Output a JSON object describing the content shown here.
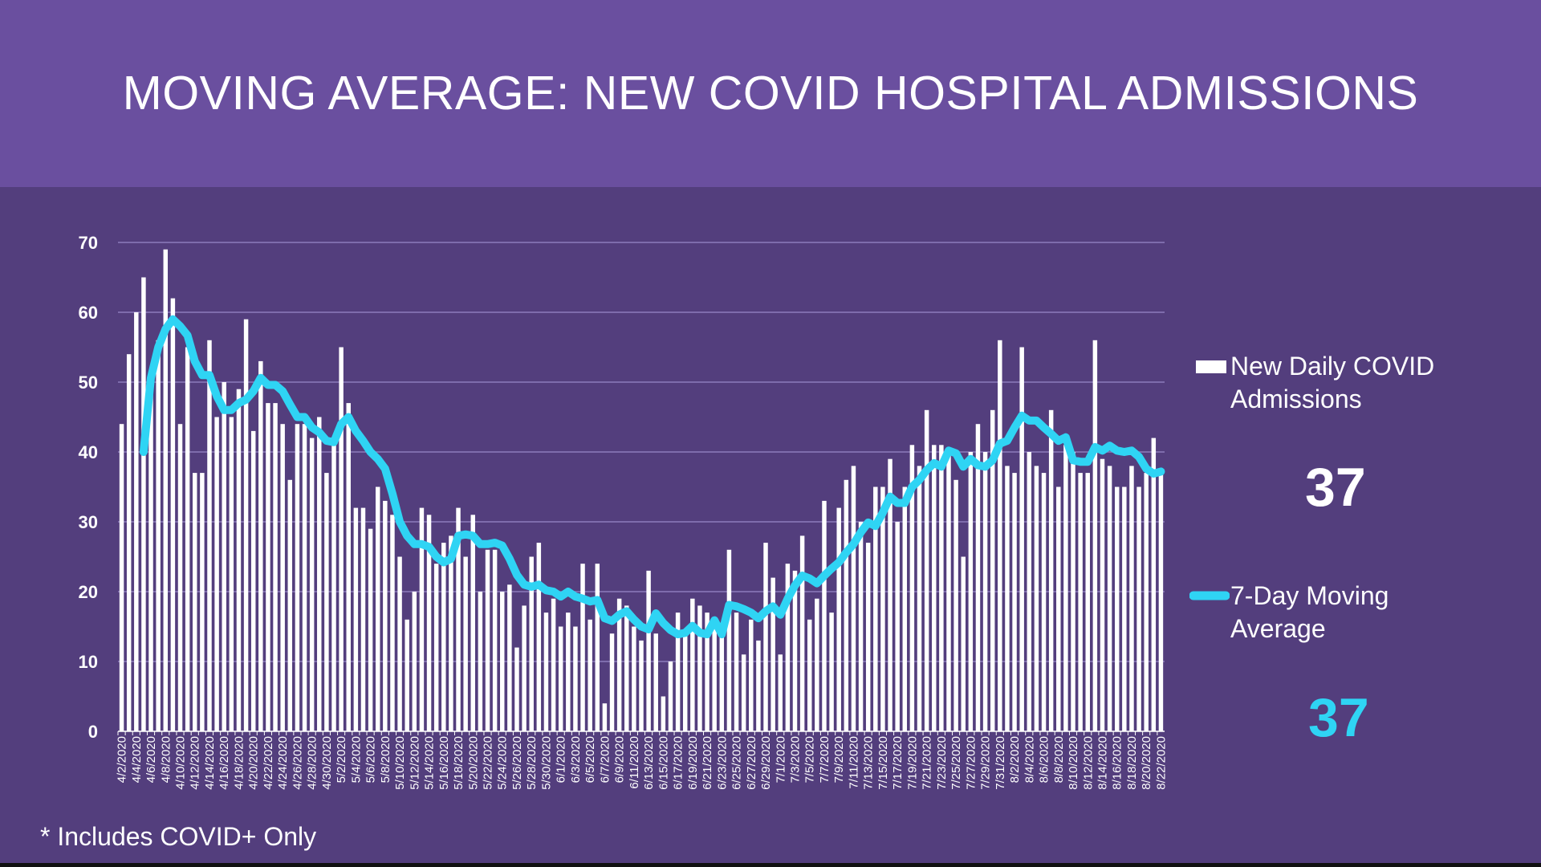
{
  "title": "MOVING AVERAGE: NEW COVID HOSPITAL ADMISSIONS",
  "footnote": "* Includes COVID+ Only",
  "colors": {
    "header": "#6a4f9f",
    "background": "#533e7d",
    "bars": "#ffffff",
    "line": "#2fd4f4",
    "grid": "#8c7bbb"
  },
  "legend": {
    "bars_label_line1": "New Daily COVID",
    "bars_label_line2": "Admissions",
    "bars_latest": "37",
    "line_label_line1": "7-Day Moving",
    "line_label_line2": "Average",
    "line_latest": "37"
  },
  "chart_data": {
    "type": "bar+line",
    "ylim": [
      0,
      70
    ],
    "yticks": [
      "0",
      "10",
      "20",
      "30",
      "40",
      "50",
      "60",
      "70"
    ],
    "grid": true,
    "legend_placement": "right",
    "categories": [
      "4/2/2020",
      "4/3/2020",
      "4/4/2020",
      "4/5/2020",
      "4/6/2020",
      "4/7/2020",
      "4/8/2020",
      "4/9/2020",
      "4/10/2020",
      "4/11/2020",
      "4/12/2020",
      "4/13/2020",
      "4/14/2020",
      "4/15/2020",
      "4/16/2020",
      "4/17/2020",
      "4/18/2020",
      "4/19/2020",
      "4/20/2020",
      "4/21/2020",
      "4/22/2020",
      "4/23/2020",
      "4/24/2020",
      "4/25/2020",
      "4/26/2020",
      "4/27/2020",
      "4/28/2020",
      "4/29/2020",
      "4/30/2020",
      "5/1/2020",
      "5/2/2020",
      "5/3/2020",
      "5/4/2020",
      "5/5/2020",
      "5/6/2020",
      "5/7/2020",
      "5/8/2020",
      "5/9/2020",
      "5/10/2020",
      "5/11/2020",
      "5/12/2020",
      "5/13/2020",
      "5/14/2020",
      "5/15/2020",
      "5/16/2020",
      "5/17/2020",
      "5/18/2020",
      "5/19/2020",
      "5/20/2020",
      "5/21/2020",
      "5/22/2020",
      "5/23/2020",
      "5/24/2020",
      "5/25/2020",
      "5/26/2020",
      "5/27/2020",
      "5/28/2020",
      "5/29/2020",
      "5/30/2020",
      "5/31/2020",
      "6/1/2020",
      "6/2/2020",
      "6/3/2020",
      "6/4/2020",
      "6/5/2020",
      "6/6/2020",
      "6/7/2020",
      "6/8/2020",
      "6/9/2020",
      "6/10/2020",
      "6/11/2020",
      "6/12/2020",
      "6/13/2020",
      "6/14/2020",
      "6/15/2020",
      "6/16/2020",
      "6/17/2020",
      "6/18/2020",
      "6/19/2020",
      "6/20/2020",
      "6/21/2020",
      "6/22/2020",
      "6/23/2020",
      "6/24/2020",
      "6/25/2020",
      "6/26/2020",
      "6/27/2020",
      "6/28/2020",
      "6/29/2020",
      "6/30/2020",
      "7/1/2020",
      "7/2/2020",
      "7/3/2020",
      "7/4/2020",
      "7/5/2020",
      "7/6/2020",
      "7/7/2020",
      "7/8/2020",
      "7/9/2020",
      "7/10/2020",
      "7/11/2020",
      "7/12/2020",
      "7/13/2020",
      "7/14/2020",
      "7/15/2020",
      "7/16/2020",
      "7/17/2020",
      "7/18/2020",
      "7/19/2020",
      "7/20/2020",
      "7/21/2020",
      "7/22/2020",
      "7/23/2020",
      "7/24/2020",
      "7/25/2020",
      "7/26/2020",
      "7/27/2020",
      "7/28/2020",
      "7/29/2020",
      "7/30/2020",
      "7/31/2020",
      "8/1/2020",
      "8/2/2020",
      "8/3/2020",
      "8/4/2020",
      "8/5/2020",
      "8/6/2020",
      "8/7/2020",
      "8/8/2020",
      "8/9/2020",
      "8/10/2020",
      "8/11/2020",
      "8/12/2020",
      "8/13/2020",
      "8/14/2020",
      "8/15/2020",
      "8/16/2020",
      "8/17/2020",
      "8/18/2020",
      "8/19/2020",
      "8/20/2020",
      "8/21/2020",
      "8/22/2020"
    ],
    "series": [
      {
        "name": "New Daily COVID Admissions",
        "type": "bar",
        "values": [
          44,
          54,
          60,
          65,
          50,
          56,
          69,
          62,
          44,
          55,
          37,
          37,
          56,
          45,
          50,
          45,
          49,
          59,
          43,
          53,
          47,
          47,
          44,
          36,
          44,
          44,
          42,
          45,
          37,
          42,
          55,
          47,
          32,
          32,
          29,
          35,
          33,
          31,
          25,
          16,
          20,
          32,
          31,
          24,
          27,
          28,
          32,
          25,
          31,
          20,
          26,
          26,
          20,
          21,
          12,
          18,
          25,
          27,
          17,
          19,
          15,
          17,
          15,
          24,
          16,
          24,
          4,
          14,
          19,
          18,
          15,
          13,
          23,
          14,
          5,
          10,
          17,
          14,
          19,
          18,
          17,
          15,
          14,
          26,
          17,
          11,
          16,
          13,
          27,
          22,
          11,
          24,
          23,
          28,
          16,
          19,
          33,
          17,
          32,
          36,
          38,
          30,
          27,
          35,
          35,
          39,
          30,
          35,
          41,
          38,
          46,
          41,
          41,
          40,
          36,
          25,
          40,
          44,
          40,
          46,
          56,
          38,
          37,
          55,
          40,
          38,
          37,
          46,
          35,
          41,
          40,
          37,
          37,
          56,
          39,
          38,
          35,
          35,
          38,
          35,
          37,
          42,
          37
        ]
      },
      {
        "name": "7-Day Moving Average",
        "type": "line",
        "values": [
          null,
          null,
          null,
          40,
          50.6,
          55,
          57.6,
          59,
          58,
          56.7,
          53,
          51,
          51,
          48,
          46,
          46,
          47,
          47.5,
          48.7,
          50.6,
          49.6,
          49.6,
          48.7,
          46.8,
          45,
          45,
          43.5,
          42.8,
          41.6,
          41.4,
          44,
          45,
          43,
          41.6,
          40,
          39,
          37.6,
          34,
          30,
          28,
          26.8,
          26.8,
          26.4,
          25,
          24.2,
          24.7,
          28,
          28.2,
          28,
          26.8,
          26.8,
          27,
          26.6,
          24.7,
          22.4,
          21,
          20.7,
          21,
          20.2,
          20,
          19.3,
          20,
          19.3,
          19,
          18.6,
          18.8,
          16.2,
          15.8,
          16.7,
          17.2,
          16,
          15,
          14.6,
          16.9,
          15.5,
          14.5,
          13.9,
          14.1,
          15.1,
          14.1,
          13.9,
          15.9,
          13.9,
          18.1,
          17.9,
          17.5,
          17,
          16.2,
          17.2,
          17.9,
          16.7,
          19,
          20.9,
          22.3,
          21.9,
          21.2,
          22.3,
          23.3,
          24.2,
          25.6,
          26.8,
          28.5,
          29.9,
          29.4,
          31.3,
          33.6,
          32.7,
          32.7,
          35,
          36,
          37.4,
          38.4,
          37.9,
          40.2,
          39.8,
          37.9,
          39,
          38.1,
          37.9,
          38.8,
          41.2,
          41.6,
          43.5,
          45.2,
          44.5,
          44.5,
          43.5,
          42.6,
          41.6,
          42.1,
          38.8,
          38.6,
          38.6,
          40.7,
          40.2,
          40.9,
          40.2,
          40,
          40.2,
          39.3,
          37.6,
          36.9,
          37.2
        ]
      }
    ]
  }
}
